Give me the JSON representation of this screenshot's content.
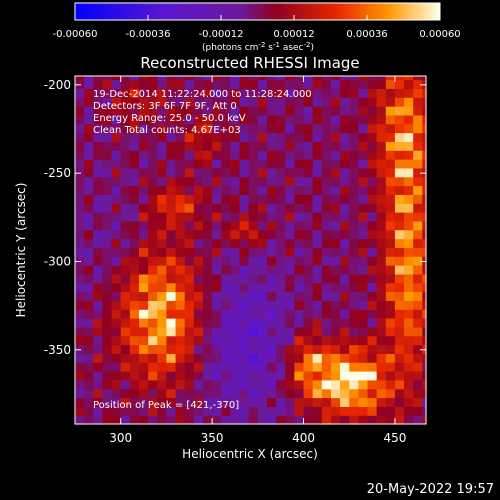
{
  "chart_data": {
    "type": "heatmap",
    "title": "Reconstructed RHESSI Image",
    "xlabel": "Heliocentric X (arcsec)",
    "ylabel": "Heliocentric Y (arcsec)",
    "xlim": [
      275,
      467
    ],
    "ylim": [
      -392,
      -195
    ],
    "x_ticks": [
      300,
      350,
      400,
      450
    ],
    "y_ticks": [
      -200,
      -250,
      -300,
      -350
    ],
    "annotations": [
      "19-Dec-2014 11:22:24.000 to 11:28:24.000",
      "Detectors: 3F 6F 7F 9F, Att 0",
      "Energy Range: 25.0 - 50.0 keV",
      "Clean     Total counts: 4.67E+03"
    ],
    "peak_label": "Position of Peak = [421,-370]",
    "peak": [
      421,
      -370
    ],
    "colorbar": {
      "range": [
        -0.0006,
        0.0006
      ],
      "tick_labels": [
        "-0.00060",
        "-0.00036",
        "-0.00012",
        "0.00012",
        "0.00036",
        "0.00060"
      ],
      "unit_prefix": "(photons cm",
      "unit_exp1": "-2",
      "unit_s": " s",
      "unit_exp2": "-1",
      "unit_asec": " asec",
      "unit_exp3": "-2",
      "unit_close": ")"
    },
    "sources": [
      {
        "x": 322,
        "y": -330,
        "sx": 16,
        "sy": 25,
        "amp": 0.00048
      },
      {
        "x": 330,
        "y": -268,
        "sx": 10,
        "sy": 9,
        "amp": 0.00024
      },
      {
        "x": 425,
        "y": -368,
        "sx": 14,
        "sy": 13,
        "amp": 0.00058
      },
      {
        "x": 402,
        "y": -358,
        "sx": 8,
        "sy": 12,
        "amp": 0.00028
      },
      {
        "x": 457,
        "y": -305,
        "sx": 9,
        "sy": 42,
        "amp": 0.0004
      },
      {
        "x": 455,
        "y": -225,
        "sx": 11,
        "sy": 28,
        "amp": 0.00034
      },
      {
        "x": 368,
        "y": -282,
        "sx": 7,
        "sy": 7,
        "amp": 0.0002
      },
      {
        "x": 345,
        "y": -230,
        "sx": 8,
        "sy": 9,
        "amp": 0.00016
      },
      {
        "x": 312,
        "y": -210,
        "sx": 12,
        "sy": 9,
        "amp": 0.00013
      }
    ],
    "negative_regions": [
      {
        "x": 367,
        "y": -344,
        "sx": 18,
        "sy": 28,
        "amp": -0.00022
      },
      {
        "x": 296,
        "y": -292,
        "sx": 20,
        "sy": 28,
        "amp": -6e-05
      }
    ]
  },
  "footer": {
    "date": "20-May-2022 19:57"
  }
}
